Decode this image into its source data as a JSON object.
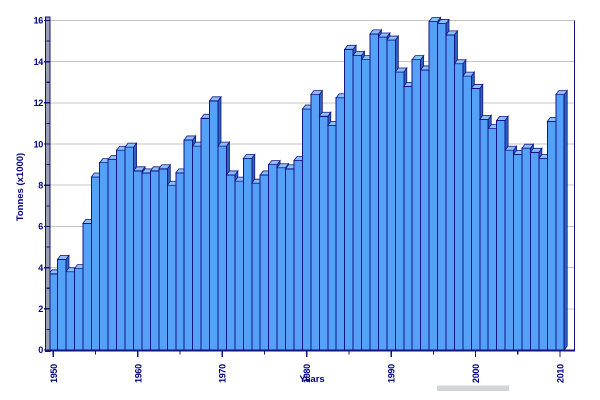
{
  "chart_data": {
    "type": "bar",
    "title": "",
    "xlabel": "Years",
    "ylabel": "Tonnes (x1000)",
    "ylim": [
      0,
      16
    ],
    "grid": "horizontal",
    "legend": "none",
    "bar_style": "pseudo-3d",
    "y_major_ticks": [
      0,
      2,
      4,
      6,
      8,
      10,
      12,
      14,
      16
    ],
    "y_minor_ticks": [
      1,
      3,
      5,
      7,
      9,
      11,
      13,
      15
    ],
    "x_major_ticks": [
      1950,
      1960,
      1970,
      1980,
      1990,
      2000,
      2010
    ],
    "x_minor_ticks": [
      1955,
      1965,
      1975,
      1985,
      1995,
      2005
    ],
    "x_tick_labels": [
      "1950",
      "1960",
      "1970",
      "1980",
      "1990",
      "2000",
      "2010"
    ],
    "y_tick_labels": [
      "0",
      "2",
      "4",
      "6",
      "8",
      "10",
      "12",
      "14",
      "16"
    ],
    "years": [
      1950,
      1951,
      1952,
      1953,
      1954,
      1955,
      1956,
      1957,
      1958,
      1959,
      1960,
      1961,
      1962,
      1963,
      1964,
      1965,
      1966,
      1967,
      1968,
      1969,
      1970,
      1971,
      1972,
      1973,
      1974,
      1975,
      1976,
      1977,
      1978,
      1979,
      1980,
      1981,
      1982,
      1983,
      1984,
      1985,
      1986,
      1987,
      1988,
      1989,
      1990,
      1991,
      1992,
      1993,
      1994,
      1995,
      1996,
      1997,
      1998,
      1999,
      2000,
      2001,
      2002,
      2003,
      2004,
      2005,
      2006,
      2007,
      2008,
      2009,
      2010
    ],
    "values": [
      3.7,
      4.4,
      3.8,
      3.95,
      6.15,
      8.4,
      9.1,
      9.25,
      9.7,
      9.85,
      8.7,
      8.6,
      8.7,
      8.8,
      8.0,
      8.6,
      10.2,
      9.9,
      11.25,
      12.1,
      9.9,
      8.5,
      8.2,
      9.3,
      8.1,
      8.5,
      9.0,
      8.85,
      8.8,
      9.2,
      11.7,
      12.4,
      11.35,
      10.9,
      12.25,
      14.6,
      14.3,
      14.1,
      15.35,
      15.2,
      15.05,
      13.5,
      12.8,
      14.1,
      13.6,
      15.95,
      15.85,
      15.3,
      13.9,
      13.3,
      12.7,
      11.2,
      10.75,
      11.15,
      9.7,
      9.5,
      9.8,
      9.6,
      9.3,
      11.1,
      12.4
    ]
  },
  "colors": {
    "background": "#ffffff",
    "bar_fill": "#55a1f7",
    "bar_border": "#151580",
    "bar_cap_top": "#8ac0fa",
    "bar_cap_side": "#2b63c4",
    "gridline": "#c4c4c4",
    "axis": "#151580",
    "wall": "#98a0b2",
    "text": "#000080",
    "footer_strip": "#d2d4dc"
  }
}
